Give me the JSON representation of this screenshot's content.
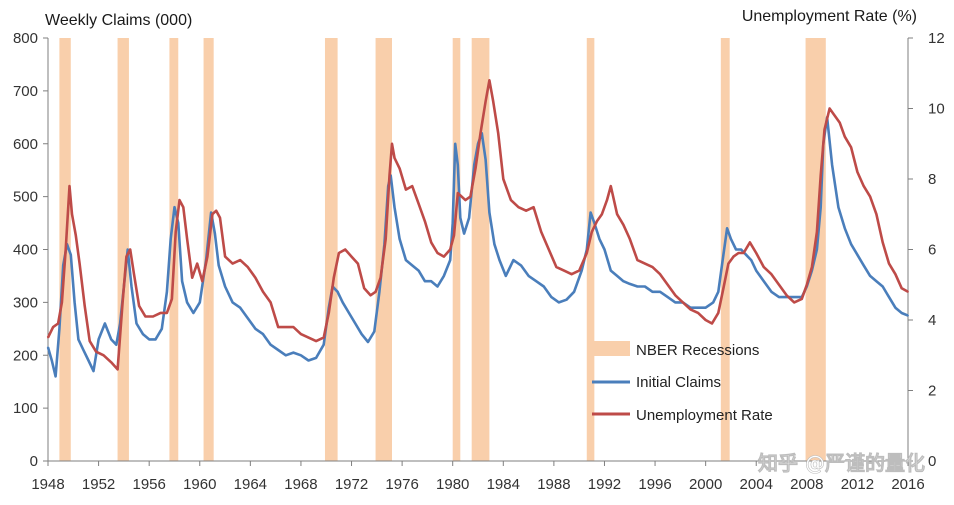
{
  "chart_data": {
    "type": "line",
    "title": "",
    "left_axis_title": "Weekly Claims (000)",
    "right_axis_title": "Unemployment  Rate (%)",
    "xlim": [
      1948,
      2016
    ],
    "ylim_left": [
      0,
      800
    ],
    "ylim_right": [
      0,
      12
    ],
    "x_ticks": [
      "1948",
      "1952",
      "1956",
      "1960",
      "1964",
      "1968",
      "1972",
      "1976",
      "1980",
      "1984",
      "1988",
      "1992",
      "1996",
      "2000",
      "2004",
      "2008",
      "2012",
      "2016"
    ],
    "y_ticks_left": [
      "0",
      "100",
      "200",
      "300",
      "400",
      "500",
      "600",
      "700",
      "800"
    ],
    "y_ticks_right": [
      "0",
      "2",
      "4",
      "6",
      "8",
      "10",
      "12"
    ],
    "legend": [
      "NBER Recessions",
      "Initial Claims",
      "Unemployment Rate"
    ],
    "colors": {
      "recession": "#f9cfab",
      "claims": "#4a7ebb",
      "unemployment": "#be4b48"
    },
    "recessions": [
      [
        1948.9,
        1949.8
      ],
      [
        1953.5,
        1954.4
      ],
      [
        1957.6,
        1958.3
      ],
      [
        1960.3,
        1961.1
      ],
      [
        1969.9,
        1970.9
      ],
      [
        1973.9,
        1975.2
      ],
      [
        1980.0,
        1980.6
      ],
      [
        1981.5,
        1982.9
      ],
      [
        1990.6,
        1991.2
      ],
      [
        2001.2,
        2001.9
      ],
      [
        2007.9,
        2009.5
      ]
    ],
    "series": [
      {
        "name": "Initial Claims",
        "axis": "left",
        "x": [
          1948.0,
          1948.3,
          1948.6,
          1948.9,
          1949.2,
          1949.5,
          1949.8,
          1950.1,
          1950.4,
          1950.8,
          1951.2,
          1951.6,
          1952.0,
          1952.5,
          1953.0,
          1953.4,
          1953.7,
          1954.0,
          1954.3,
          1954.6,
          1955.0,
          1955.5,
          1956.0,
          1956.5,
          1957.0,
          1957.4,
          1957.7,
          1958.0,
          1958.3,
          1958.6,
          1959.0,
          1959.5,
          1960.0,
          1960.5,
          1960.9,
          1961.2,
          1961.5,
          1962.0,
          1962.6,
          1963.2,
          1963.8,
          1964.4,
          1965.0,
          1965.6,
          1966.2,
          1966.8,
          1967.4,
          1968.0,
          1968.6,
          1969.2,
          1969.8,
          1970.2,
          1970.5,
          1970.9,
          1971.3,
          1971.8,
          1972.3,
          1972.8,
          1973.3,
          1973.8,
          1974.2,
          1974.6,
          1974.9,
          1975.1,
          1975.4,
          1975.8,
          1976.3,
          1976.8,
          1977.3,
          1977.8,
          1978.3,
          1978.8,
          1979.3,
          1979.8,
          1980.0,
          1980.2,
          1980.4,
          1980.6,
          1980.9,
          1981.3,
          1981.7,
          1982.0,
          1982.3,
          1982.6,
          1982.9,
          1983.3,
          1983.7,
          1984.2,
          1984.8,
          1985.4,
          1986.0,
          1986.6,
          1987.2,
          1987.8,
          1988.4,
          1989.0,
          1989.6,
          1990.2,
          1990.6,
          1990.9,
          1991.2,
          1991.6,
          1992.0,
          1992.5,
          1993.0,
          1993.5,
          1994.0,
          1994.6,
          1995.2,
          1995.8,
          1996.4,
          1997.0,
          1997.6,
          1998.2,
          1998.8,
          1999.4,
          2000.0,
          2000.6,
          2001.0,
          2001.4,
          2001.7,
          2002.0,
          2002.4,
          2002.8,
          2003.2,
          2003.6,
          2004.0,
          2004.6,
          2005.2,
          2005.8,
          2006.4,
          2007.0,
          2007.6,
          2008.0,
          2008.4,
          2008.8,
          2009.1,
          2009.3,
          2009.6,
          2010.0,
          2010.5,
          2011.0,
          2011.5,
          2012.0,
          2012.5,
          2013.0,
          2013.5,
          2014.0,
          2014.5,
          2015.0,
          2015.5,
          2016.0
        ],
        "values": [
          215,
          190,
          160,
          250,
          370,
          410,
          390,
          300,
          230,
          210,
          190,
          170,
          230,
          260,
          230,
          220,
          260,
          330,
          400,
          330,
          260,
          240,
          230,
          230,
          250,
          320,
          420,
          480,
          450,
          340,
          300,
          280,
          300,
          380,
          470,
          430,
          370,
          330,
          300,
          290,
          270,
          250,
          240,
          220,
          210,
          200,
          205,
          200,
          190,
          195,
          220,
          290,
          330,
          320,
          300,
          280,
          260,
          240,
          225,
          245,
          320,
          410,
          520,
          540,
          480,
          420,
          380,
          370,
          360,
          340,
          340,
          330,
          350,
          380,
          450,
          600,
          560,
          460,
          430,
          460,
          560,
          600,
          620,
          570,
          470,
          410,
          380,
          350,
          380,
          370,
          350,
          340,
          330,
          310,
          300,
          305,
          320,
          360,
          400,
          470,
          450,
          420,
          400,
          360,
          350,
          340,
          335,
          330,
          330,
          320,
          320,
          310,
          300,
          300,
          290,
          290,
          290,
          300,
          320,
          390,
          440,
          420,
          400,
          400,
          390,
          380,
          360,
          340,
          320,
          310,
          310,
          310,
          310,
          330,
          360,
          400,
          480,
          600,
          650,
          560,
          480,
          440,
          410,
          390,
          370,
          350,
          340,
          330,
          310,
          290,
          280,
          275
        ]
      },
      {
        "name": "Unemployment Rate",
        "axis": "right",
        "x": [
          1948.0,
          1948.4,
          1948.8,
          1949.1,
          1949.4,
          1949.7,
          1949.9,
          1950.2,
          1950.5,
          1950.9,
          1951.3,
          1951.8,
          1952.4,
          1953.0,
          1953.5,
          1953.9,
          1954.2,
          1954.5,
          1954.8,
          1955.2,
          1955.7,
          1956.3,
          1956.9,
          1957.4,
          1957.8,
          1958.1,
          1958.4,
          1958.7,
          1959.0,
          1959.4,
          1959.8,
          1960.2,
          1960.6,
          1961.0,
          1961.3,
          1961.6,
          1962.0,
          1962.6,
          1963.2,
          1963.8,
          1964.4,
          1965.0,
          1965.6,
          1966.2,
          1966.8,
          1967.4,
          1968.0,
          1968.6,
          1969.2,
          1969.8,
          1970.2,
          1970.6,
          1971.0,
          1971.5,
          1972.0,
          1972.5,
          1973.0,
          1973.5,
          1973.9,
          1974.3,
          1974.7,
          1975.0,
          1975.2,
          1975.4,
          1975.8,
          1976.3,
          1976.8,
          1977.3,
          1977.8,
          1978.3,
          1978.8,
          1979.3,
          1979.8,
          1980.1,
          1980.4,
          1980.7,
          1981.0,
          1981.4,
          1981.8,
          1982.2,
          1982.6,
          1982.9,
          1983.2,
          1983.6,
          1984.0,
          1984.6,
          1985.2,
          1985.8,
          1986.4,
          1987.0,
          1987.6,
          1988.2,
          1988.8,
          1989.4,
          1990.0,
          1990.6,
          1991.0,
          1991.4,
          1991.8,
          1992.2,
          1992.5,
          1993.0,
          1993.5,
          1994.0,
          1994.6,
          1995.2,
          1995.8,
          1996.4,
          1997.0,
          1997.6,
          1998.2,
          1998.8,
          1999.4,
          2000.0,
          2000.5,
          2001.0,
          2001.4,
          2001.8,
          2002.2,
          2002.6,
          2003.0,
          2003.5,
          2004.0,
          2004.6,
          2005.2,
          2005.8,
          2006.4,
          2007.0,
          2007.6,
          2008.0,
          2008.4,
          2008.8,
          2009.1,
          2009.4,
          2009.8,
          2010.2,
          2010.6,
          2011.0,
          2011.5,
          2012.0,
          2012.5,
          2013.0,
          2013.5,
          2014.0,
          2014.5,
          2015.0,
          2015.5,
          2016.0
        ],
        "values": [
          3.5,
          3.8,
          3.9,
          4.5,
          6.0,
          7.8,
          7.0,
          6.4,
          5.6,
          4.4,
          3.4,
          3.1,
          3.0,
          2.8,
          2.6,
          4.5,
          5.8,
          6.0,
          5.3,
          4.4,
          4.1,
          4.1,
          4.2,
          4.2,
          4.6,
          6.5,
          7.4,
          7.2,
          6.3,
          5.2,
          5.6,
          5.1,
          5.8,
          7.0,
          7.1,
          6.9,
          5.8,
          5.6,
          5.7,
          5.5,
          5.2,
          4.8,
          4.5,
          3.8,
          3.8,
          3.8,
          3.6,
          3.5,
          3.4,
          3.5,
          4.2,
          5.2,
          5.9,
          6.0,
          5.8,
          5.6,
          4.9,
          4.7,
          4.8,
          5.2,
          6.3,
          8.1,
          9.0,
          8.6,
          8.3,
          7.7,
          7.8,
          7.3,
          6.8,
          6.2,
          5.9,
          5.8,
          6.0,
          6.4,
          7.6,
          7.5,
          7.4,
          7.5,
          8.3,
          9.3,
          10.2,
          10.8,
          10.2,
          9.3,
          8.0,
          7.4,
          7.2,
          7.1,
          7.2,
          6.5,
          6.0,
          5.5,
          5.4,
          5.3,
          5.4,
          5.9,
          6.5,
          6.8,
          7.0,
          7.4,
          7.8,
          7.0,
          6.7,
          6.3,
          5.7,
          5.6,
          5.5,
          5.3,
          5.0,
          4.7,
          4.5,
          4.3,
          4.2,
          4.0,
          3.9,
          4.2,
          4.9,
          5.6,
          5.8,
          5.9,
          5.9,
          6.2,
          5.9,
          5.5,
          5.3,
          5.0,
          4.7,
          4.5,
          4.6,
          5.0,
          5.5,
          6.5,
          8.1,
          9.4,
          10.0,
          9.8,
          9.6,
          9.2,
          8.9,
          8.2,
          7.8,
          7.5,
          7.0,
          6.2,
          5.6,
          5.3,
          4.9,
          4.8
        ]
      }
    ]
  },
  "watermark": "知乎 @严谨的量化"
}
